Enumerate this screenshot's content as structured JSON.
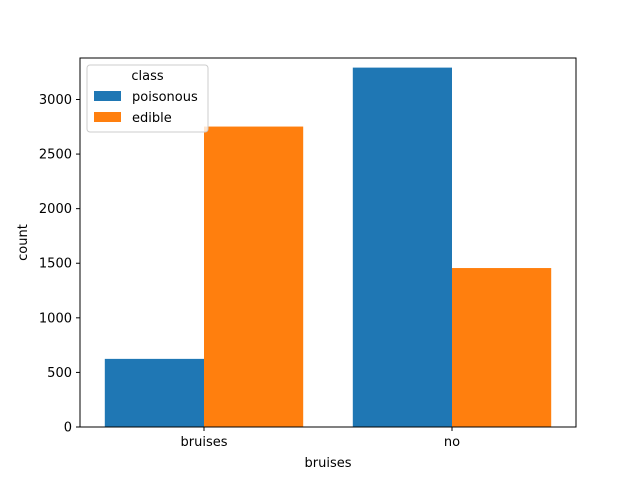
{
  "chart_data": {
    "type": "bar",
    "categories": [
      "bruises",
      "no"
    ],
    "series": [
      {
        "name": "poisonous",
        "values": [
          624,
          3292
        ],
        "color": "#1f77b4"
      },
      {
        "name": "edible",
        "values": [
          2752,
          1456
        ],
        "color": "#ff7f0e"
      }
    ],
    "title": "",
    "xlabel": "bruises",
    "ylabel": "count",
    "ylim": [
      0,
      3380
    ],
    "yticks": [
      0,
      500,
      1000,
      1500,
      2000,
      2500,
      3000
    ],
    "grid": false,
    "legend": {
      "title": "class",
      "placement": "top-left"
    }
  }
}
